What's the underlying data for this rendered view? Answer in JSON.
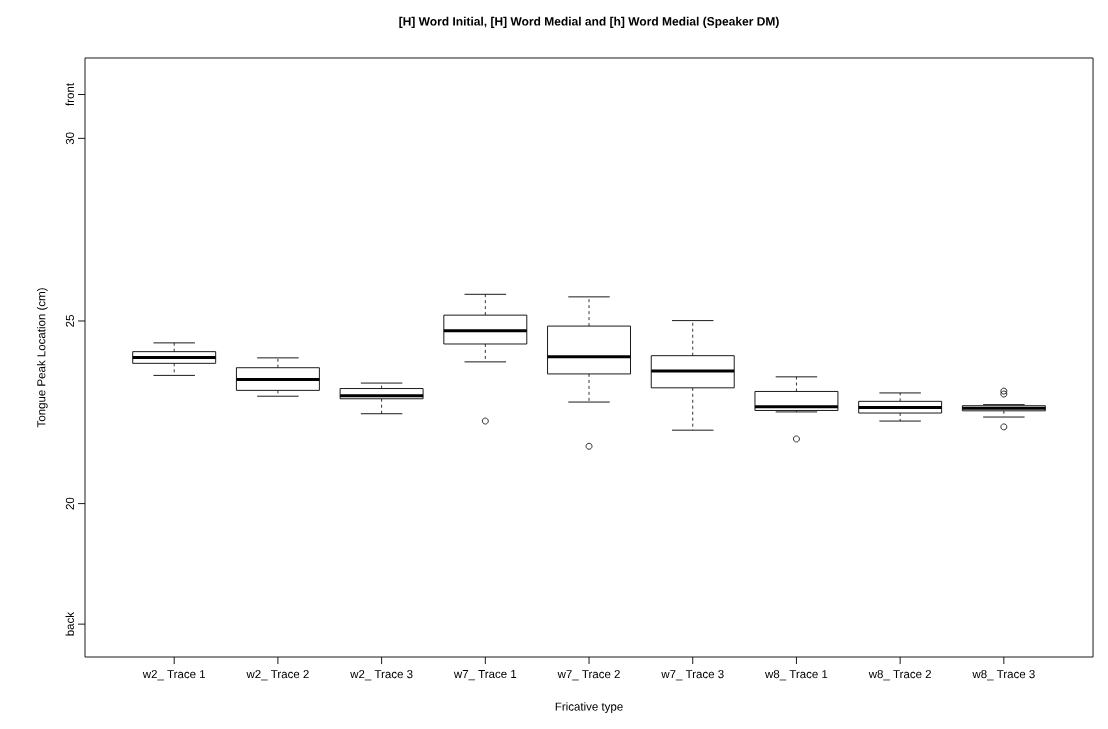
{
  "chart_data": {
    "type": "box",
    "title": "[H] Word Initial, [H] Word Medial and [h] Word Medial (Speaker DM)",
    "xlabel": "Fricative type",
    "ylabel": "Tongue Peak Location (cm)",
    "categories": [
      "w2_ Trace 1",
      "w2_ Trace 2",
      "w2_ Trace 3",
      "w7_ Trace 1",
      "w7_ Trace 2",
      "w7_ Trace 3",
      "w8_ Trace 1",
      "w8_ Trace 2",
      "w8_ Trace 3"
    ],
    "boxes": [
      {
        "low": 23.51,
        "q1": 23.84,
        "median": 24.0,
        "q3": 24.16,
        "high": 24.4
      },
      {
        "low": 22.94,
        "q1": 23.1,
        "median": 23.4,
        "q3": 23.72,
        "high": 23.99
      },
      {
        "low": 22.46,
        "q1": 22.87,
        "median": 22.95,
        "q3": 23.15,
        "high": 23.3
      },
      {
        "low": 23.88,
        "q1": 24.37,
        "median": 24.73,
        "q3": 25.16,
        "high": 25.73,
        "outliers": [
          22.26
        ]
      },
      {
        "low": 22.78,
        "q1": 23.55,
        "median": 24.02,
        "q3": 24.86,
        "high": 25.66,
        "outliers": [
          21.57
        ]
      },
      {
        "low": 22.01,
        "q1": 23.17,
        "median": 23.63,
        "q3": 24.05,
        "high": 25.01
      },
      {
        "low": 22.51,
        "q1": 22.55,
        "median": 22.65,
        "q3": 23.07,
        "high": 23.47,
        "outliers": [
          21.77
        ]
      },
      {
        "low": 22.26,
        "q1": 22.48,
        "median": 22.63,
        "q3": 22.8,
        "high": 23.03
      },
      {
        "low": 22.37,
        "q1": 22.54,
        "median": 22.61,
        "q3": 22.68,
        "high": 22.71,
        "outliers": [
          23.08,
          23.0,
          22.1
        ]
      }
    ],
    "ylim": [
      15.8,
      32.2
    ],
    "yticks": [
      {
        "value": 16.7,
        "label": "back"
      },
      20,
      25,
      30,
      {
        "value": 31.2,
        "label": "front"
      }
    ]
  }
}
